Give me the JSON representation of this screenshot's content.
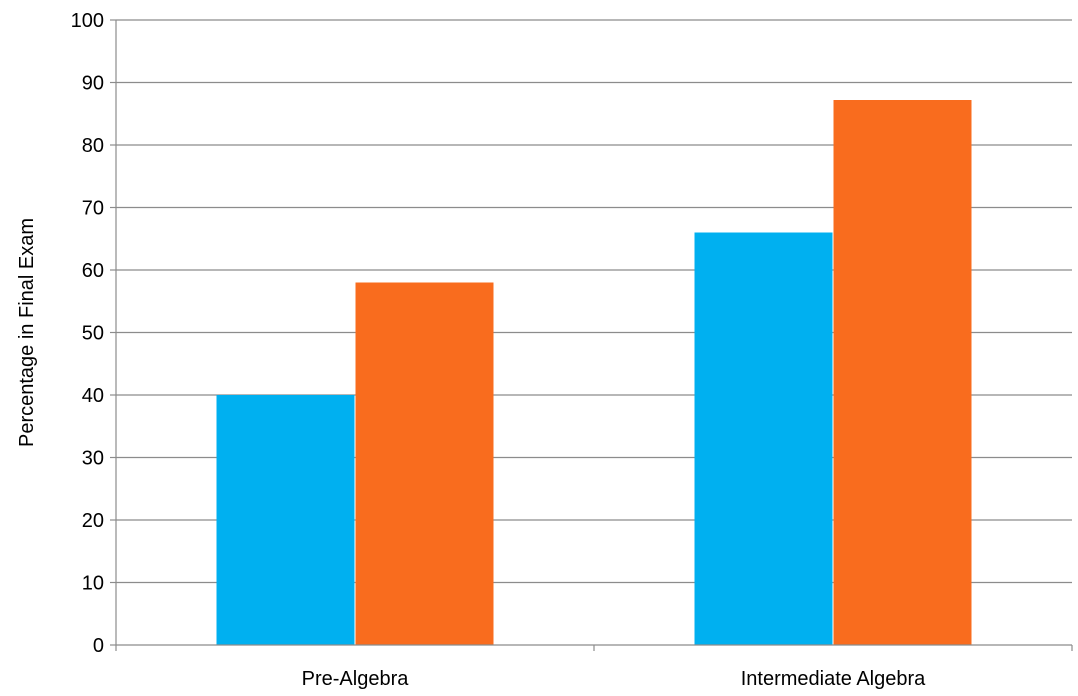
{
  "chart_data": {
    "type": "bar",
    "title": "",
    "xlabel": "",
    "ylabel": "Percentage in Final Exam",
    "categories": [
      "Pre-Algebra",
      "Intermediate Algebra"
    ],
    "series": [
      {
        "values": [
          40,
          66
        ],
        "color": "#00B0F0"
      },
      {
        "values": [
          58,
          87.2
        ],
        "color": "#F96C1E"
      }
    ],
    "ylim": [
      0,
      100
    ],
    "yticks": [
      "0",
      "10",
      "20",
      "30",
      "40",
      "50",
      "60",
      "70",
      "80",
      "90",
      "100"
    ],
    "grid": true,
    "legend": "none"
  }
}
